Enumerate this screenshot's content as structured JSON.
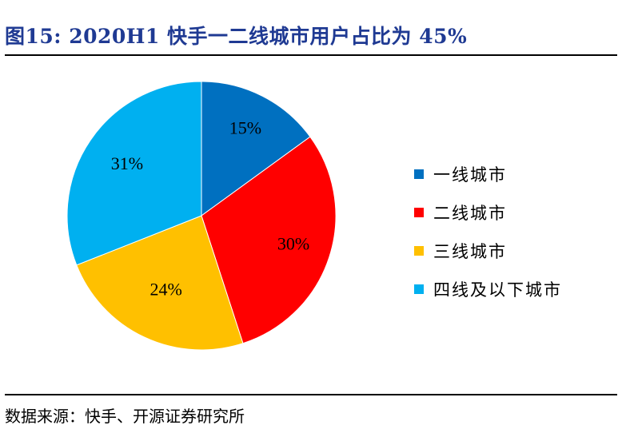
{
  "title": "图15:  2020H1 快手一二线城市用户占比为 45%",
  "source": "数据来源：快手、开源证券研究所",
  "chart_data": {
    "type": "pie",
    "categories": [
      "一线城市",
      "二线城市",
      "三线城市",
      "四线及以下城市"
    ],
    "values": [
      15,
      30,
      24,
      31
    ],
    "value_labels": [
      "15%",
      "30%",
      "24%",
      "31%"
    ],
    "colors": [
      "#0070c0",
      "#ff0000",
      "#ffc000",
      "#00b0f0"
    ],
    "start_angle": "12 o'clock",
    "direction": "clockwise",
    "legend_position": "right"
  }
}
